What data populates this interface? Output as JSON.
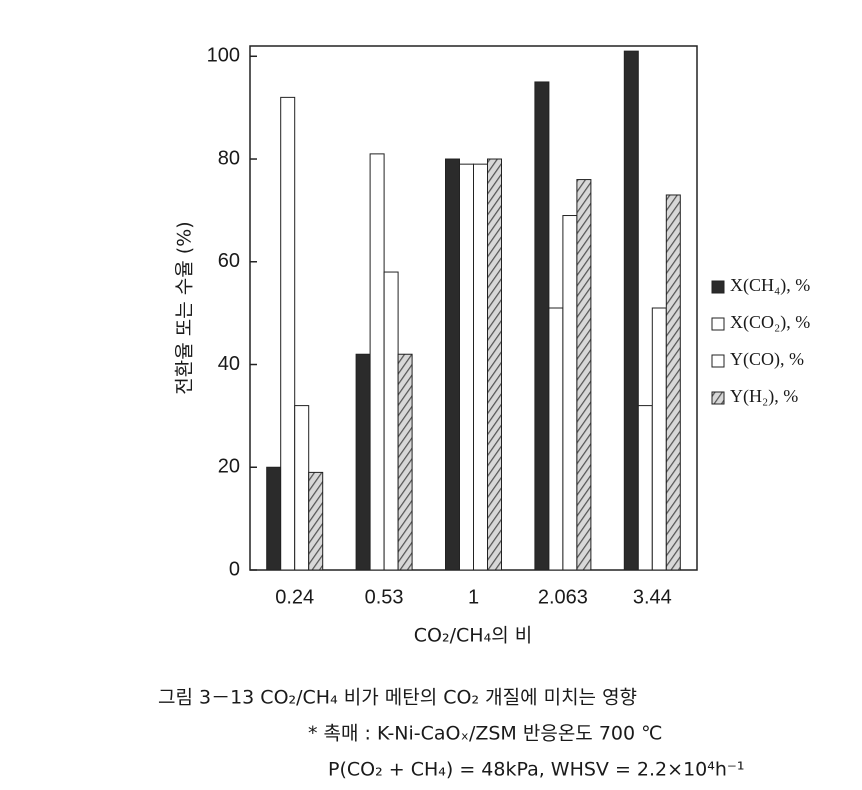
{
  "chart_data": {
    "type": "bar",
    "x_label": "CO₂/CH₄의 비",
    "y_label": "전환율 또는 수율 (%)",
    "categories": [
      "0.24",
      "0.53",
      "1",
      "2.063",
      "3.44"
    ],
    "series": [
      {
        "name": "X(CH₄), %",
        "color": "#2b2b2b",
        "values": [
          20,
          42,
          80,
          95,
          101
        ]
      },
      {
        "name": "X(CO₂), %",
        "color": "#ffffff",
        "values": [
          92,
          81,
          79,
          51,
          32
        ]
      },
      {
        "name": "Y(CO), %",
        "color": "#ffffff",
        "values": [
          32,
          58,
          79,
          69,
          51
        ]
      },
      {
        "name": "Y(H₂), %",
        "color": "#8a8a8a",
        "pattern": "hatch",
        "values": [
          19,
          42,
          80,
          76,
          73
        ]
      }
    ],
    "ylim": [
      0,
      102
    ],
    "yticks": [
      0,
      20,
      40,
      60,
      80,
      100
    ],
    "legend": "right"
  },
  "caption": [
    "그림 3－13   CO₂/CH₄ 비가 메탄의 CO₂ 개질에 미치는 영향",
    "* 촉매 : K-Ni-CaOₓ/ZSM    반응온도 700 ℃",
    "P(CO₂ + CH₄) = 48kPa,  WHSV = 2.2×10⁴h⁻¹"
  ]
}
